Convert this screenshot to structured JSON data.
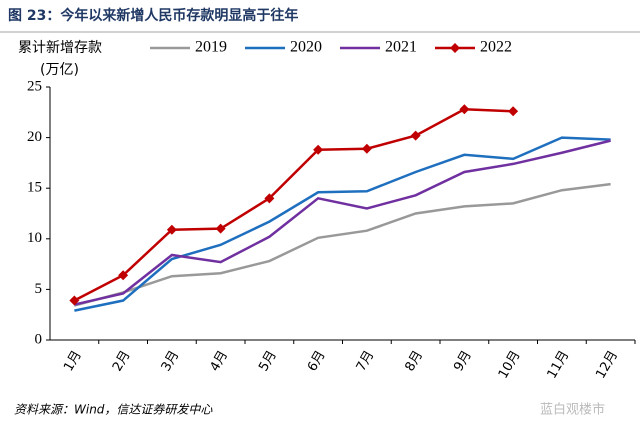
{
  "chart_data": {
    "type": "line",
    "title": "图 23：今年以来新增人民币存款明显高于往年",
    "y_label": "累计新增存款",
    "y_unit": "(万亿)",
    "source": "资料来源：Wind，信达证券研发中心",
    "watermark": "蓝白观楼市",
    "categories": [
      "1月",
      "2月",
      "3月",
      "4月",
      "5月",
      "6月",
      "7月",
      "8月",
      "9月",
      "10月",
      "11月",
      "12月"
    ],
    "series": [
      {
        "name": "2019",
        "color": "#999999",
        "marker": "none",
        "values": [
          3.4,
          4.7,
          6.3,
          6.6,
          7.8,
          10.1,
          10.8,
          12.5,
          13.2,
          13.5,
          14.8,
          15.4
        ]
      },
      {
        "name": "2020",
        "color": "#1f6fbf",
        "marker": "none",
        "values": [
          2.9,
          3.9,
          8.0,
          9.4,
          11.7,
          14.6,
          14.7,
          16.6,
          18.3,
          17.9,
          20.0,
          19.8
        ]
      },
      {
        "name": "2021",
        "color": "#7030a0",
        "marker": "none",
        "values": [
          3.5,
          4.6,
          8.4,
          7.7,
          10.2,
          14.0,
          13.0,
          14.3,
          16.6,
          17.4,
          18.5,
          19.7
        ]
      },
      {
        "name": "2022",
        "color": "#c00000",
        "marker": "diamond",
        "values": [
          3.9,
          6.4,
          10.9,
          11.0,
          14.0,
          18.8,
          18.9,
          20.2,
          22.8,
          22.6,
          null,
          null
        ]
      }
    ],
    "ylim": [
      0,
      25
    ],
    "yticks": [
      0,
      5,
      10,
      15,
      20,
      25
    ],
    "grid": false,
    "legend": "top"
  }
}
